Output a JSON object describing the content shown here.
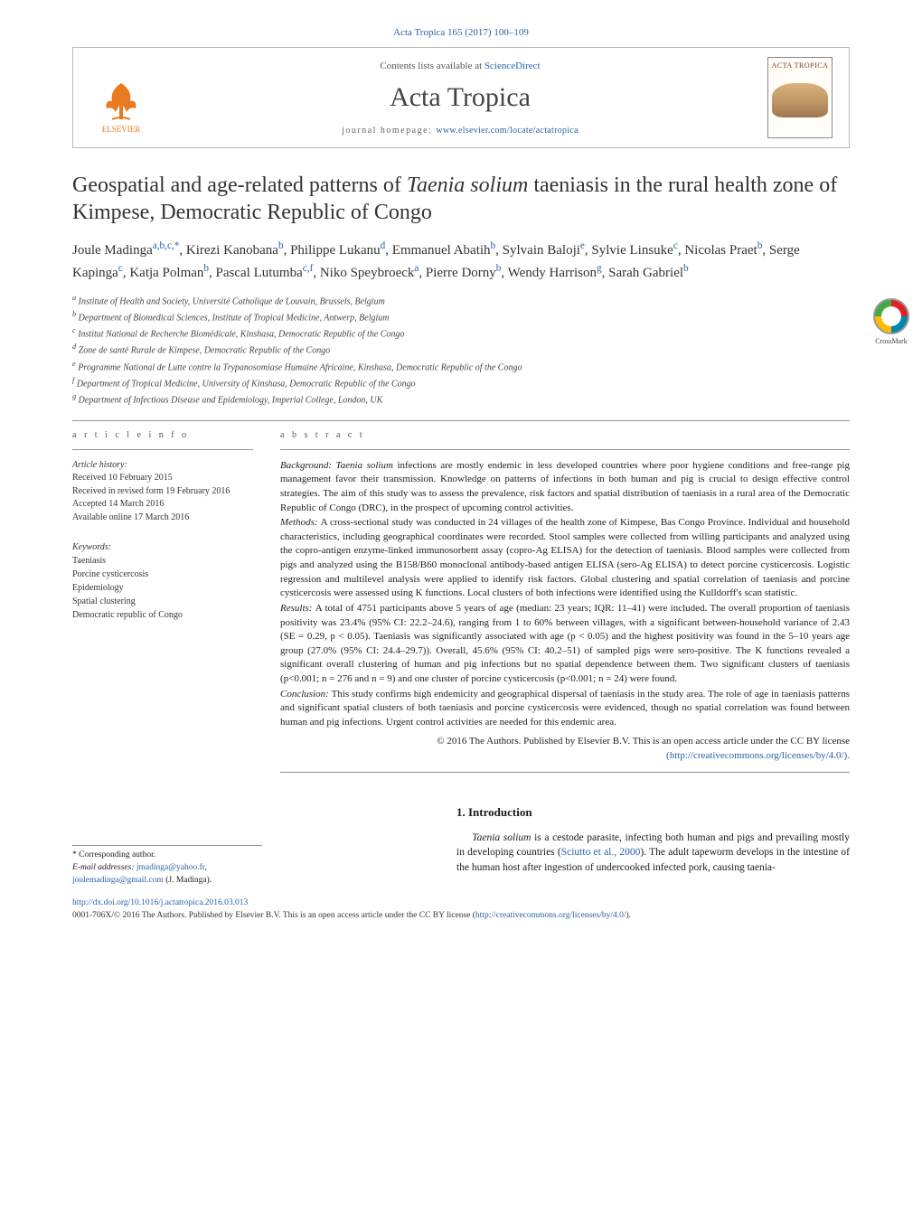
{
  "journal_ref": "Acta Tropica 165 (2017) 100–109",
  "header": {
    "contents_prefix": "Contents lists available at ",
    "contents_link": "ScienceDirect",
    "journal_title": "Acta Tropica",
    "homepage_prefix": "journal homepage: ",
    "homepage_url": "www.elsevier.com/locate/actatropica",
    "publisher": "ELSEVIER",
    "cover_title": "ACTA TROPICA",
    "crossmark": "CrossMark"
  },
  "article": {
    "title_pre": "Geospatial and age-related patterns of ",
    "title_species": "Taenia solium",
    "title_post": " taeniasis in the rural health zone of Kimpese, Democratic Republic of Congo",
    "authors_html": "Joule Madinga<span class='sup'>a,b,c,*</span>, Kirezi Kanobana<span class='sup'>b</span>, Philippe Lukanu<span class='sup'>d</span>, Emmanuel Abatih<span class='sup'>b</span>, Sylvain Baloji<span class='sup'>e</span>, Sylvie Linsuke<span class='sup'>c</span>, Nicolas Praet<span class='sup'>b</span>, Serge Kapinga<span class='sup'>c</span>, Katja Polman<span class='sup'>b</span>, Pascal Lutumba<span class='sup'>c,f</span>, Niko Speybroeck<span class='sup'>a</span>, Pierre Dorny<span class='sup'>b</span>, Wendy Harrison<span class='sup'>g</span>, Sarah Gabriel<span class='sup'>b</span>",
    "affiliations": [
      "a Institute of Health and Society, Université Catholique de Louvain, Brussels, Belgium",
      "b Department of Biomedical Sciences, Institute of Tropical Medicine, Antwerp, Belgium",
      "c Institut National de Recherche Biomédicale, Kinshasa, Democratic Republic of the Congo",
      "d Zone de santé Rurale de Kimpese, Democratic Republic of the Congo",
      "e Programme National de Lutte contre la Trypanosomiase Humaine Africaine, Kinshasa, Democratic Republic of the Congo",
      "f Department of Tropical Medicine, University of Kinshasa, Democratic Republic of the Congo",
      "g Department of Infectious Disease and Epidemiology, Imperial College, London, UK"
    ]
  },
  "info": {
    "head": "a r t i c l e   i n f o",
    "history_head": "Article history:",
    "history": [
      "Received 10 February 2015",
      "Received in revised form 19 February 2016",
      "Accepted 14 March 2016",
      "Available online 17 March 2016"
    ],
    "keywords_head": "Keywords:",
    "keywords": [
      "Taeniasis",
      "Porcine cysticercosis",
      "Epidemiology",
      "Spatial clustering",
      "Democratic republic of Congo"
    ]
  },
  "abstract": {
    "head": "a b s t r a c t",
    "background_label": "Background: ",
    "background_species": "Taenia solium",
    "background": " infections are mostly endemic in less developed countries where poor hygiene conditions and free-range pig management favor their transmission. Knowledge on patterns of infections in both human and pig is crucial to design effective control strategies. The aim of this study was to assess the prevalence, risk factors and spatial distribution of taeniasis in a rural area of the Democratic Republic of Congo (DRC), in the prospect of upcoming control activities.",
    "methods_label": "Methods: ",
    "methods": "A cross-sectional study was conducted in 24 villages of the health zone of Kimpese, Bas Congo Province. Individual and household characteristics, including geographical coordinates were recorded. Stool samples were collected from willing participants and analyzed using the copro-antigen enzyme-linked immunosorbent assay (copro-Ag ELISA) for the detection of taeniasis. Blood samples were collected from pigs and analyzed using the B158/B60 monoclonal antibody-based antigen ELISA (sero-Ag ELISA) to detect porcine cysticercosis. Logistic regression and multilevel analysis were applied to identify risk factors. Global clustering and spatial correlation of taeniasis and porcine cysticercosis were assessed using K functions. Local clusters of both infections were identified using the Kulldorff's scan statistic.",
    "results_label": "Results: ",
    "results": "A total of 4751 participants above 5 years of age (median: 23 years; IQR: 11–41) were included. The overall proportion of taeniasis positivity was 23.4% (95% CI: 22.2–24.6), ranging from 1 to 60% between villages, with a significant between-household variance of 2.43 (SE = 0.29, p < 0.05). Taeniasis was significantly associated with age (p < 0.05) and the highest positivity was found in the 5–10 years age group (27.0% (95% CI: 24.4–29.7)). Overall, 45.6% (95% CI: 40.2–51) of sampled pigs were sero-positive. The K functions revealed a significant overall clustering of human and pig infections but no spatial dependence between them. Two significant clusters of taeniasis (p<0.001; n = 276 and n = 9) and one cluster of porcine cysticercosis (p<0.001; n = 24) were found.",
    "conclusion_label": "Conclusion: ",
    "conclusion": "This study confirms high endemicity and geographical dispersal of taeniasis in the study area. The role of age in taeniasis patterns and significant spatial clusters of both taeniasis and porcine cysticercosis were evidenced, though no spatial correlation was found between human and pig infections. Urgent control activities are needed for this endemic area.",
    "copyright": "© 2016 The Authors. Published by Elsevier B.V. This is an open access article under the CC BY license",
    "license_url": "(http://creativecommons.org/licenses/by/4.0/)."
  },
  "intro": {
    "head": "1. Introduction",
    "body_species": "Taenia solium",
    "body_pre": " is a cestode parasite, infecting both human and pigs and prevailing mostly in developing countries (",
    "body_cite": "Sciutto et al., 2000",
    "body_post": "). The adult tapeworm develops in the intestine of the human host after ingestion of undercooked infected pork, causing taenia-"
  },
  "corr": {
    "star": "* Corresponding author.",
    "email_label": "E-mail addresses: ",
    "email1": "jmadinga@yahoo.fr",
    "email_sep": ", ",
    "email2": "joulemadinga@gmail.com",
    "email_who": " (J. Madinga)."
  },
  "footer": {
    "doi": "http://dx.doi.org/10.1016/j.actatropica.2016.03.013",
    "line2_pre": "0001-706X/© 2016 The Authors. Published by Elsevier B.V. This is an open access article under the CC BY license (",
    "line2_url": "http://creativecommons.org/licenses/by/4.0/",
    "line2_post": ")."
  },
  "colors": {
    "link": "#2862a8",
    "text": "#1a1a1a",
    "rule": "#939393",
    "elsevier": "#e87b1f"
  }
}
